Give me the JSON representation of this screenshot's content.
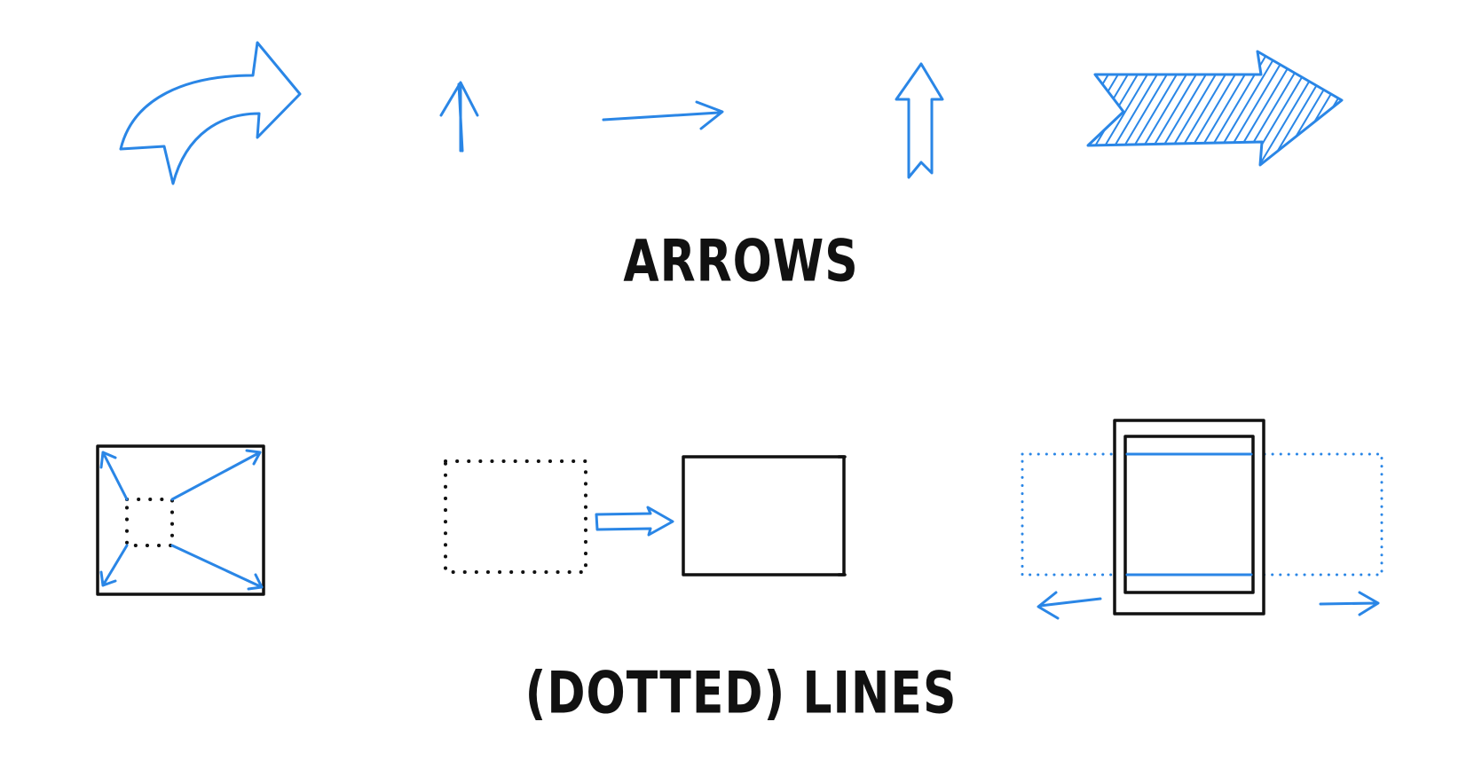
{
  "titles": {
    "arrows": "ARROWS",
    "lines": "(DOTTED) LINES"
  },
  "colors": {
    "ink_blue": "#2a86e6",
    "ink_black": "#111111",
    "background": "#ffffff"
  }
}
